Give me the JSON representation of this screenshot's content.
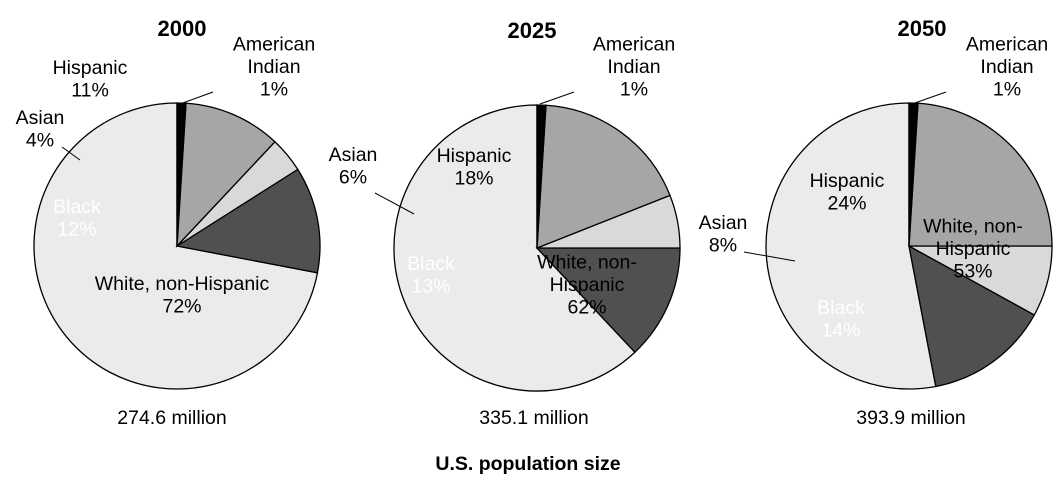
{
  "chart_data": [
    {
      "type": "pie",
      "title": "2000",
      "total_label": "274.6 million",
      "slices": [
        {
          "name": "White, non-Hispanic",
          "value": 72,
          "label": "72%",
          "color": "#ebebeb"
        },
        {
          "name": "Black",
          "value": 12,
          "label": "12%",
          "color": "#505050"
        },
        {
          "name": "Asian",
          "value": 4,
          "label": "4%",
          "color": "#d9d9d9"
        },
        {
          "name": "Hispanic",
          "value": 11,
          "label": "11%",
          "color": "#a6a6a6"
        },
        {
          "name_lines": [
            "American",
            "Indian"
          ],
          "value": 1,
          "label": "1%",
          "color": "#000000"
        }
      ]
    },
    {
      "type": "pie",
      "title": "2025",
      "total_label": "335.1 million",
      "slices": [
        {
          "name_lines": [
            "White, non-",
            "Hispanic"
          ],
          "value": 62,
          "label": "62%",
          "color": "#ebebeb"
        },
        {
          "name": "Black",
          "value": 13,
          "label": "13%",
          "color": "#505050"
        },
        {
          "name": "Asian",
          "value": 6,
          "label": "6%",
          "color": "#d9d9d9"
        },
        {
          "name": "Hispanic",
          "value": 18,
          "label": "18%",
          "color": "#a6a6a6"
        },
        {
          "name_lines": [
            "American",
            "Indian"
          ],
          "value": 1,
          "label": "1%",
          "color": "#000000"
        }
      ]
    },
    {
      "type": "pie",
      "title": "2050",
      "total_label": "393.9 million",
      "slices": [
        {
          "name_lines": [
            "White, non-",
            "Hispanic"
          ],
          "value": 53,
          "label": "53%",
          "color": "#ebebeb"
        },
        {
          "name": "Black",
          "value": 14,
          "label": "14%",
          "color": "#505050"
        },
        {
          "name": "Asian",
          "value": 8,
          "label": "8%",
          "color": "#d9d9d9"
        },
        {
          "name": "Hispanic",
          "value": 24,
          "label": "24%",
          "color": "#a6a6a6"
        },
        {
          "name_lines": [
            "American",
            "Indian"
          ],
          "value": 1,
          "label": "1%",
          "color": "#000000"
        }
      ]
    }
  ],
  "xlabel": "U.S. population size"
}
